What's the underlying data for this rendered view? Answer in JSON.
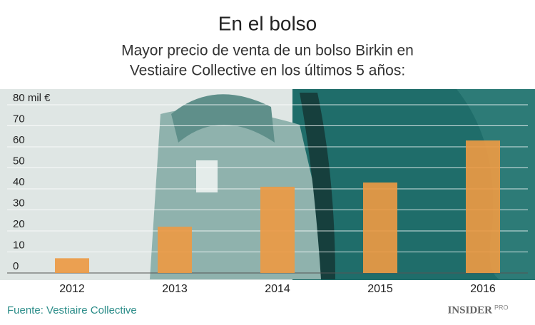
{
  "chart_data": {
    "type": "bar",
    "title": "En el bolso",
    "subtitle": [
      "Mayor precio de venta de un bolso Birkin en",
      "Vestiaire Collective en los últimos 5 años:"
    ],
    "categories": [
      "2012",
      "2013",
      "2014",
      "2015",
      "2016"
    ],
    "values": [
      7,
      22,
      41,
      43,
      63
    ],
    "color": "#eb9a44",
    "ylim": [
      0,
      80
    ],
    "yticks": [
      0,
      10,
      20,
      30,
      40,
      50,
      60,
      70,
      {
        "value": 80,
        "label": "80 mil €"
      }
    ],
    "grid": true,
    "source": "Fuente: Vestiaire Collective",
    "logo": [
      "INSIDER",
      "PRO"
    ]
  }
}
